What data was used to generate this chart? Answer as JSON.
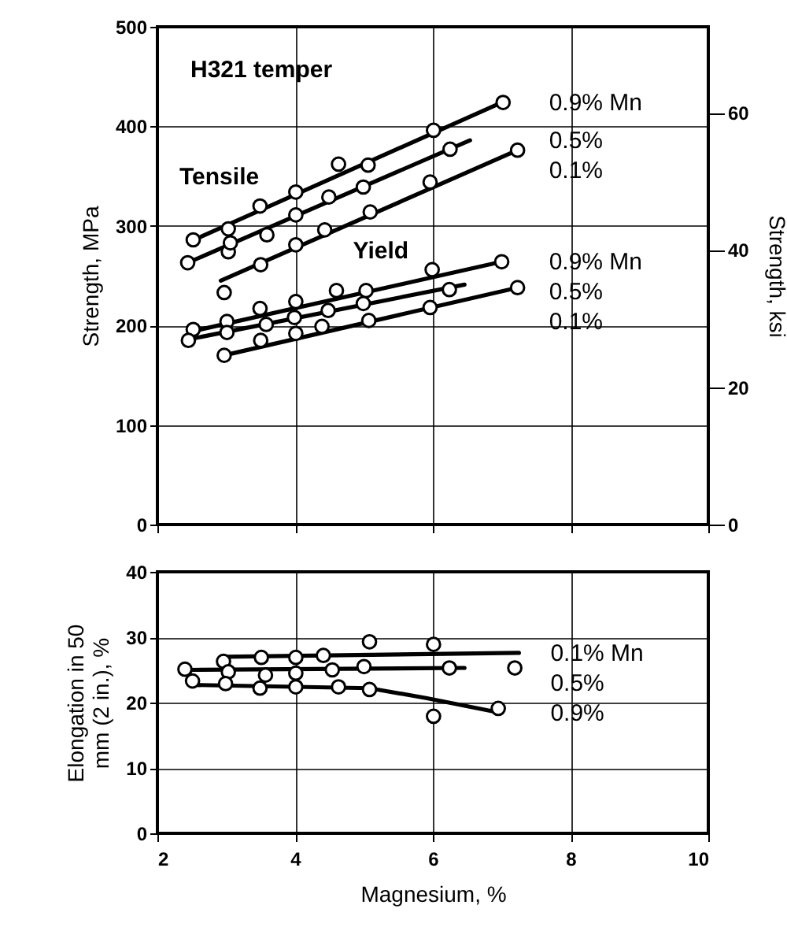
{
  "chart_data": [
    {
      "type": "scatter",
      "ylabel": "Strength, MPa",
      "y2label": "Strength, ksi",
      "xlim": [
        2,
        10
      ],
      "xticks": [
        2,
        4,
        6,
        8,
        10
      ],
      "ylim": [
        0,
        500
      ],
      "yticks": [
        0,
        100,
        200,
        300,
        400,
        500
      ],
      "y2lim": [
        0,
        72.52
      ],
      "y2ticks": [
        0,
        20,
        40,
        60
      ],
      "grid": true,
      "tick_labels": "y",
      "annotations": [
        "H321 temper",
        "Tensile",
        "Yield"
      ],
      "series": [
        {
          "type": "line",
          "name": "0.9% Mn",
          "color": "#000000",
          "x": [
            2.5,
            7.0
          ],
          "values": [
            285,
            424
          ]
        },
        {
          "type": "line",
          "name": "0.5%",
          "color": "#000000",
          "x": [
            2.44,
            6.54
          ],
          "values": [
            263,
            386
          ]
        },
        {
          "type": "line",
          "name": "0.1%",
          "color": "#000000",
          "x": [
            2.92,
            7.23
          ],
          "values": [
            245,
            376
          ]
        },
        {
          "type": "line",
          "name": "0.9% Mn",
          "color": "#000000",
          "x": [
            2.5,
            7.0
          ],
          "values": [
            194,
            264
          ]
        },
        {
          "type": "line",
          "name": "0.5%",
          "color": "#000000",
          "x": [
            2.45,
            6.46
          ],
          "values": [
            186,
            241
          ]
        },
        {
          "type": "line",
          "name": "0.1%",
          "color": "#000000",
          "x": [
            2.97,
            7.23
          ],
          "values": [
            170,
            238
          ]
        },
        {
          "type": "scatter",
          "marker": "circle",
          "color": "#000000",
          "x": [
            2.52,
            3.03,
            3.49,
            4.01,
            4.63,
            5.06,
            6.01,
            7.02
          ],
          "values": [
            286,
            297,
            320,
            334,
            362,
            361,
            396,
            424
          ]
        },
        {
          "type": "scatter",
          "marker": "circle",
          "color": "#000000",
          "x": [
            2.44,
            3.03,
            3.06,
            3.59,
            4.01,
            4.49,
            4.99,
            6.25
          ],
          "values": [
            263,
            274,
            283,
            291,
            311,
            329,
            339,
            377
          ]
        },
        {
          "type": "scatter",
          "marker": "circle",
          "color": "#000000",
          "x": [
            2.97,
            3.5,
            4.01,
            4.43,
            5.09,
            5.96,
            7.23
          ],
          "values": [
            233,
            261,
            281,
            296,
            314,
            344,
            376
          ]
        },
        {
          "type": "scatter",
          "marker": "circle",
          "color": "#000000",
          "x": [
            2.52,
            3.01,
            3.49,
            4.01,
            4.6,
            5.03,
            5.99,
            7.0
          ],
          "values": [
            196,
            204,
            217,
            224,
            235,
            235,
            256,
            264
          ]
        },
        {
          "type": "scatter",
          "marker": "circle",
          "color": "#000000",
          "x": [
            2.45,
            3.01,
            3.58,
            3.99,
            4.48,
            4.99,
            6.24
          ],
          "values": [
            185,
            193,
            201,
            208,
            215,
            222,
            236
          ]
        },
        {
          "type": "scatter",
          "marker": "circle",
          "color": "#000000",
          "x": [
            2.97,
            3.5,
            4.01,
            4.39,
            5.07,
            5.96,
            7.23
          ],
          "values": [
            170,
            185,
            192,
            199,
            205,
            218,
            238
          ]
        }
      ]
    },
    {
      "type": "scatter",
      "xlabel": "Magnesium, %",
      "ylabel": "Elongation in 50 mm (2 in.), %",
      "xlim": [
        2,
        10
      ],
      "xticks": [
        2,
        4,
        6,
        8,
        10
      ],
      "ylim": [
        0,
        40
      ],
      "yticks": [
        0,
        10,
        20,
        30,
        40
      ],
      "grid": true,
      "series": [
        {
          "type": "line",
          "name": "0.1% Mn",
          "color": "#000000",
          "x": [
            2.96,
            7.25
          ],
          "values": [
            27.0,
            27.6
          ]
        },
        {
          "type": "line",
          "name": "0.5%",
          "color": "#000000",
          "x": [
            2.47,
            6.46
          ],
          "values": [
            25.0,
            25.3
          ]
        },
        {
          "type": "line",
          "name": "0.9%",
          "color": "#000000",
          "x": [
            2.51,
            5.08,
            5.9,
            6.95
          ],
          "values": [
            22.7,
            22.2,
            20.7,
            18.5
          ]
        },
        {
          "type": "scatter",
          "marker": "circle",
          "color": "#000000",
          "x": [
            2.96,
            3.51,
            4.01,
            4.41,
            5.08,
            6.01,
            7.19
          ],
          "values": [
            26.3,
            26.9,
            26.9,
            27.2,
            29.3,
            28.9,
            25.3
          ]
        },
        {
          "type": "scatter",
          "marker": "circle",
          "color": "#000000",
          "x": [
            2.4,
            3.03,
            3.57,
            4.01,
            4.54,
            5.0,
            6.24
          ],
          "values": [
            25.1,
            24.7,
            24.2,
            24.5,
            25.0,
            25.5,
            25.3
          ]
        },
        {
          "type": "scatter",
          "marker": "circle",
          "color": "#000000",
          "x": [
            2.51,
            2.99,
            3.49,
            4.01,
            4.63,
            5.08,
            6.01,
            6.95
          ],
          "values": [
            23.3,
            22.9,
            22.2,
            22.4,
            22.4,
            22.0,
            17.9,
            19.1
          ]
        }
      ]
    }
  ]
}
